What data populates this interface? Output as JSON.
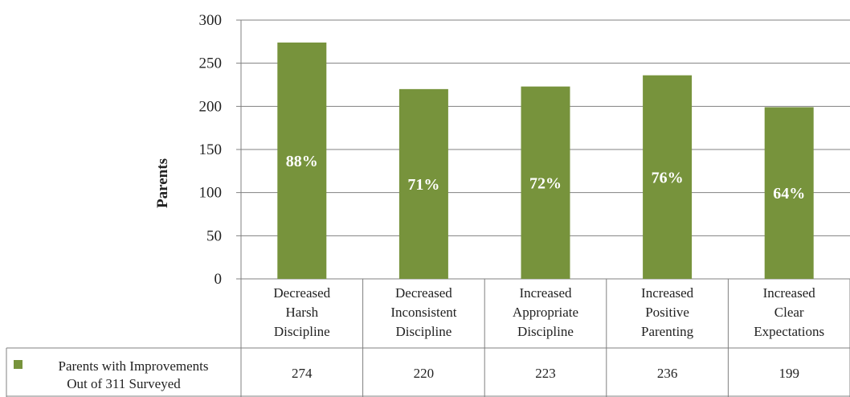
{
  "chart_data": {
    "type": "bar",
    "title": "",
    "xlabel": "",
    "ylabel": "Parents",
    "ylim": [
      0,
      300
    ],
    "yticks": [
      0,
      50,
      100,
      150,
      200,
      250,
      300
    ],
    "grid": true,
    "categories": [
      [
        "Decreased",
        "Harsh",
        "Discipline"
      ],
      [
        "Decreased",
        "Inconsistent",
        "Discipline"
      ],
      [
        "Increased",
        "Appropriate",
        "Discipline"
      ],
      [
        "Increased",
        "Positive",
        "Parenting"
      ],
      [
        "Increased",
        "Clear",
        "Expectations"
      ]
    ],
    "series": [
      {
        "name": [
          "Parents with Improvements",
          "Out of 311 Surveyed"
        ],
        "color": "#77933c",
        "values": [
          274,
          220,
          223,
          236,
          199
        ],
        "value_labels": [
          "274",
          "220",
          "223",
          "236",
          "199"
        ],
        "bar_labels": [
          "88%",
          "71%",
          "72%",
          "76%",
          "64%"
        ]
      }
    ],
    "data_table": true,
    "colors": {
      "bar": "#77933c",
      "axis": "#808080",
      "grid": "#808080"
    }
  }
}
